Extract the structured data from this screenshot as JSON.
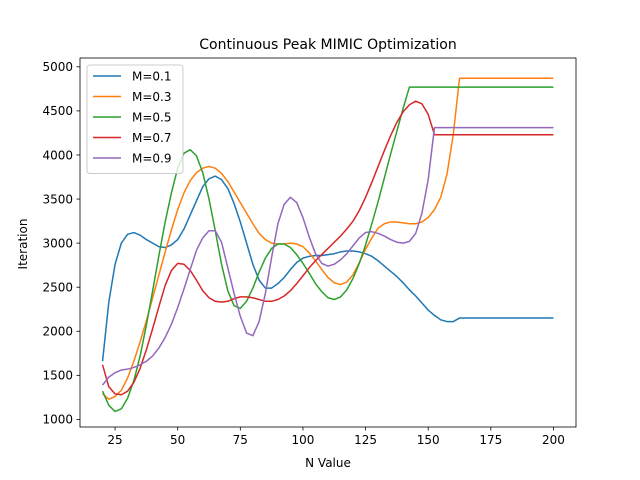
{
  "chart_data": {
    "type": "line",
    "title": "Continuous Peak MIMIC Optimization",
    "xlabel": "N Value",
    "ylabel": "Iteration",
    "xlim": [
      11,
      209
    ],
    "ylim": [
      914,
      5100
    ],
    "xticks": [
      25,
      50,
      75,
      100,
      125,
      150,
      175,
      200
    ],
    "yticks": [
      1000,
      1500,
      2000,
      2500,
      3000,
      3500,
      4000,
      4500,
      5000
    ],
    "grid": false,
    "legend_position": "top-left",
    "x": [
      20,
      22.5,
      25,
      27.5,
      30,
      32.5,
      35,
      37.5,
      40,
      42.5,
      45,
      47.5,
      50,
      52.5,
      55,
      57.5,
      60,
      62.5,
      65,
      67.5,
      70,
      72.5,
      75,
      77.5,
      80,
      82.5,
      85,
      87.5,
      90,
      92.5,
      95,
      97.5,
      100,
      102.5,
      105,
      107.5,
      110,
      112.5,
      115,
      117.5,
      120,
      122.5,
      125,
      127.5,
      130,
      132.5,
      135,
      137.5,
      140,
      142.5,
      145,
      147.5,
      150,
      152.5,
      155,
      157.5,
      160,
      162.5,
      165,
      167.5,
      170,
      172.5,
      175,
      177.5,
      180,
      182.5,
      185,
      187.5,
      190,
      192.5,
      195,
      197.5,
      200
    ],
    "series": [
      {
        "name": "M=0.1",
        "color": "#1f77b4",
        "values": [
          1660,
          2330,
          2760,
          3000,
          3100,
          3120,
          3090,
          3040,
          3000,
          2960,
          2950,
          2980,
          3040,
          3160,
          3320,
          3480,
          3640,
          3730,
          3760,
          3720,
          3620,
          3450,
          3240,
          3000,
          2760,
          2580,
          2490,
          2490,
          2540,
          2610,
          2700,
          2780,
          2830,
          2850,
          2860,
          2860,
          2870,
          2880,
          2900,
          2910,
          2910,
          2900,
          2880,
          2850,
          2800,
          2740,
          2680,
          2620,
          2550,
          2470,
          2400,
          2320,
          2240,
          2180,
          2130,
          2110,
          2110,
          2150,
          2150,
          2150,
          2150,
          2150,
          2150,
          2150,
          2150,
          2150,
          2150,
          2150,
          2150,
          2150,
          2150,
          2150,
          2150
        ]
      },
      {
        "name": "M=0.3",
        "color": "#ff7f0e",
        "values": [
          1290,
          1230,
          1260,
          1330,
          1470,
          1660,
          1880,
          2120,
          2380,
          2640,
          2900,
          3150,
          3380,
          3570,
          3710,
          3800,
          3850,
          3870,
          3850,
          3790,
          3700,
          3580,
          3460,
          3340,
          3220,
          3110,
          3040,
          3000,
          2990,
          2990,
          3000,
          2990,
          2960,
          2890,
          2800,
          2700,
          2610,
          2550,
          2530,
          2560,
          2640,
          2780,
          2930,
          3060,
          3170,
          3220,
          3240,
          3240,
          3230,
          3220,
          3220,
          3240,
          3290,
          3380,
          3520,
          3780,
          4230,
          4870,
          4870,
          4870,
          4870,
          4870,
          4870,
          4870,
          4870,
          4870,
          4870,
          4870,
          4870,
          4870,
          4870,
          4870,
          4870
        ]
      },
      {
        "name": "M=0.5",
        "color": "#2ca02c",
        "values": [
          1320,
          1160,
          1090,
          1120,
          1240,
          1440,
          1720,
          2070,
          2460,
          2860,
          3240,
          3570,
          3850,
          4020,
          4060,
          3990,
          3800,
          3500,
          3140,
          2760,
          2460,
          2290,
          2260,
          2340,
          2490,
          2670,
          2830,
          2940,
          2990,
          2990,
          2950,
          2870,
          2770,
          2660,
          2540,
          2450,
          2380,
          2360,
          2390,
          2470,
          2600,
          2770,
          2980,
          3220,
          3470,
          3740,
          4010,
          4270,
          4530,
          4770,
          4770,
          4770,
          4770,
          4770,
          4770,
          4770,
          4770,
          4770,
          4770,
          4770,
          4770,
          4770,
          4770,
          4770,
          4770,
          4770,
          4770,
          4770,
          4770,
          4770,
          4770,
          4770,
          4770
        ]
      },
      {
        "name": "M=0.7",
        "color": "#d62728",
        "values": [
          1620,
          1370,
          1290,
          1280,
          1320,
          1420,
          1580,
          1790,
          2030,
          2280,
          2520,
          2690,
          2770,
          2760,
          2690,
          2580,
          2460,
          2380,
          2340,
          2330,
          2340,
          2370,
          2390,
          2390,
          2380,
          2360,
          2340,
          2340,
          2360,
          2400,
          2460,
          2540,
          2630,
          2720,
          2800,
          2870,
          2940,
          3010,
          3080,
          3160,
          3250,
          3370,
          3520,
          3690,
          3870,
          4050,
          4220,
          4370,
          4490,
          4570,
          4610,
          4580,
          4460,
          4230,
          4230,
          4230,
          4230,
          4230,
          4230,
          4230,
          4230,
          4230,
          4230,
          4230,
          4230,
          4230,
          4230,
          4230,
          4230,
          4230,
          4230,
          4230,
          4230
        ]
      },
      {
        "name": "M=0.9",
        "color": "#9467bd",
        "values": [
          1390,
          1480,
          1530,
          1560,
          1570,
          1590,
          1620,
          1660,
          1720,
          1810,
          1930,
          2080,
          2270,
          2480,
          2700,
          2920,
          3060,
          3140,
          3140,
          3010,
          2720,
          2430,
          2170,
          1980,
          1950,
          2110,
          2430,
          2840,
          3220,
          3440,
          3520,
          3460,
          3290,
          3070,
          2880,
          2770,
          2740,
          2760,
          2810,
          2880,
          2970,
          3060,
          3120,
          3130,
          3110,
          3080,
          3040,
          3010,
          3000,
          3020,
          3110,
          3340,
          3720,
          4310,
          4310,
          4310,
          4310,
          4310,
          4310,
          4310,
          4310,
          4310,
          4310,
          4310,
          4310,
          4310,
          4310,
          4310,
          4310,
          4310,
          4310,
          4310,
          4310
        ]
      }
    ]
  }
}
